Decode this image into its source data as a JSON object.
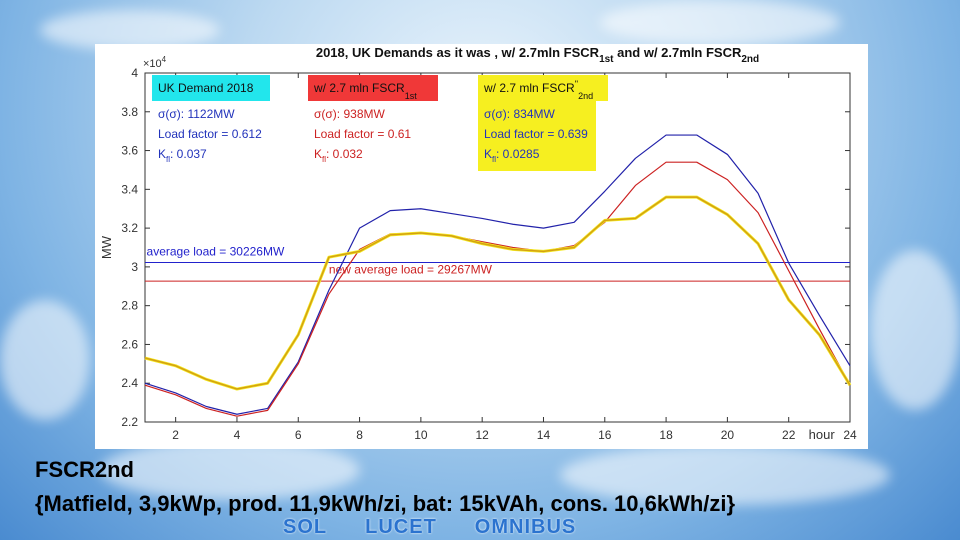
{
  "slide": {
    "caption_line1": "FSCR2nd",
    "caption_line2": "{Matfield, 3,9kWp, prod. 11,9kWh/zi, bat: 15kVAh, cons. 10,6kWh/zi}",
    "motto": [
      "SOL",
      "LUCET",
      "OMNIBUS"
    ]
  },
  "chart_data": {
    "type": "line",
    "title": "2018, UK Demands as it was ,    w/  2.7mln  FSCR",
    "title_sub1": "1st",
    "title_mid": "   and  w/  2.7mln  FSCR",
    "title_sub2": "2nd",
    "ylabel": "MW",
    "xlabel": "hour",
    "y_exponent_label": "×10",
    "y_exponent_power": "4",
    "xlim": [
      1,
      24
    ],
    "ylim": [
      22000,
      40000
    ],
    "xticks": [
      2,
      4,
      6,
      8,
      10,
      12,
      14,
      16,
      18,
      20,
      22,
      24
    ],
    "yticks": [
      22000,
      24000,
      26000,
      28000,
      30000,
      32000,
      34000,
      36000,
      38000,
      40000
    ],
    "ytick_labels": [
      "2.2",
      "2.4",
      "2.6",
      "2.8",
      "3",
      "3.2",
      "3.4",
      "3.6",
      "3.8",
      "4"
    ],
    "x": [
      1,
      2,
      3,
      4,
      5,
      6,
      7,
      8,
      9,
      10,
      11,
      12,
      13,
      14,
      15,
      16,
      17,
      18,
      19,
      20,
      21,
      22,
      23,
      24
    ],
    "series": [
      {
        "color": "#2222aa",
        "width": 1.2,
        "values": [
          24000,
          23500,
          22800,
          22400,
          22700,
          25100,
          28800,
          32000,
          32900,
          33000,
          32750,
          32500,
          32200,
          32000,
          32300,
          33900,
          35600,
          36800,
          36800,
          35800,
          33800,
          30200,
          27500,
          24900
        ]
      },
      {
        "color": "#cc2222",
        "width": 1.2,
        "values": [
          23900,
          23400,
          22700,
          22300,
          22600,
          25000,
          28600,
          30900,
          31700,
          31750,
          31600,
          31300,
          31000,
          30800,
          31100,
          32300,
          34200,
          35400,
          35400,
          34500,
          32800,
          29800,
          26800,
          23900
        ]
      },
      {
        "color": "#f4ea20",
        "width": 3,
        "values": [
          25300,
          24900,
          24200,
          23700,
          24000,
          26500,
          30500,
          30800,
          31650,
          31750,
          31600,
          31200,
          30900,
          30800,
          31000,
          32400,
          32500,
          33600,
          33600,
          32700,
          31200,
          28300,
          26500,
          23900
        ]
      },
      {
        "color": "#d4a012",
        "width": 1.5,
        "values": [
          25300,
          24900,
          24200,
          23700,
          24000,
          26500,
          30500,
          30800,
          31650,
          31750,
          31600,
          31200,
          30900,
          30800,
          31000,
          32400,
          32500,
          33600,
          33600,
          32700,
          31200,
          28300,
          26500,
          23900
        ]
      }
    ],
    "average_lines": [
      {
        "value": 30226,
        "color": "#2222cc",
        "label": "average load = 30226MW",
        "label_color": "#2222cc",
        "label_x": 1.05,
        "label_y": 30600
      },
      {
        "value": 29267,
        "color": "#cc2222",
        "label": "new average load = 29267MW",
        "label_color": "#cc2222",
        "label_x": 7.0,
        "label_y": 29650
      }
    ],
    "annotations": [
      {
        "title": "UK Demand 2018",
        "title_bg": "#22e6ec",
        "text_color": "#2233bb",
        "sigma": "σ(σ): 1122MW",
        "load_factor": "Load factor = 0.612",
        "kfl": "0.037",
        "stat_bg": ""
      },
      {
        "title": "w/ 2.7 mln FSCR",
        "title_sub": "1st",
        "title_bg": "#f03838",
        "text_color": "#cc2222",
        "sigma": "σ(σ): 938MW",
        "load_factor": "Load factor = 0.61",
        "kfl": "0.032",
        "stat_bg": ""
      },
      {
        "title": "w/ 2.7 mln FSCR",
        "title_sup": "''",
        "title_sub": "2nd",
        "title_bg": "#f6ef20",
        "text_color": "#2233bb",
        "sigma": "σ(σ): 834MW",
        "load_factor": "Load factor = 0.639",
        "kfl": "0.0285",
        "stat_bg": "#f6ef20"
      }
    ]
  }
}
